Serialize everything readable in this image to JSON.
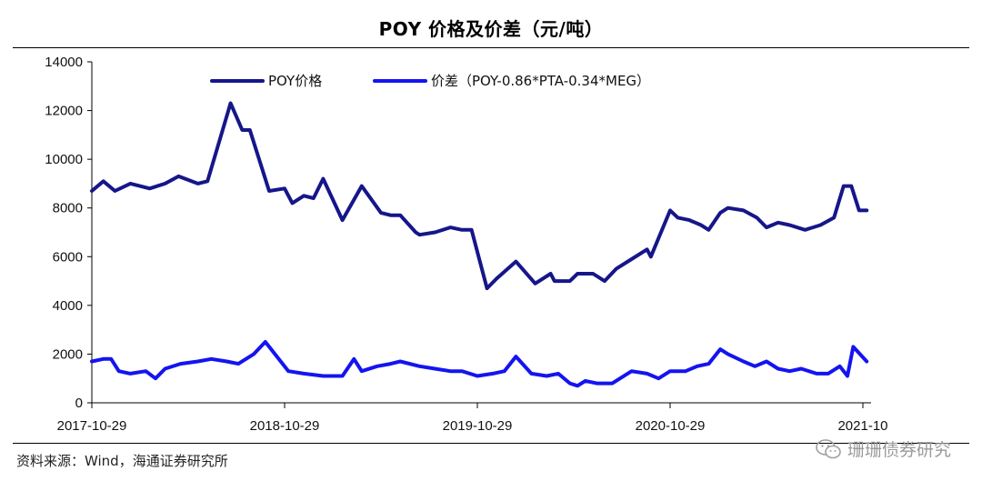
{
  "title": "POY 价格及价差（元/吨）",
  "source": "资料来源：Wind，海通证券研究所",
  "watermark": "珊珊债券研究",
  "colors": {
    "poy": "#16168a",
    "spread": "#1414f0",
    "axis": "#000000"
  },
  "chart_data": {
    "type": "line",
    "title": "POY 价格及价差（元/吨）",
    "xlabel": "",
    "ylabel": "",
    "ylim": [
      0,
      14000
    ],
    "yticks": [
      0,
      2000,
      4000,
      6000,
      8000,
      10000,
      12000,
      14000
    ],
    "xlim": [
      0,
      4.0
    ],
    "xticks": [
      {
        "value": 0,
        "label": "2017-10-29"
      },
      {
        "value": 1,
        "label": "2018-10-29"
      },
      {
        "value": 2,
        "label": "2019-10-29"
      },
      {
        "value": 3,
        "label": "2020-10-29"
      },
      {
        "value": 4,
        "label": "2021-10"
      }
    ],
    "legend": "top",
    "series": [
      {
        "name": "POY价格",
        "x": [
          0,
          0.06,
          0.12,
          0.2,
          0.3,
          0.38,
          0.45,
          0.55,
          0.6,
          0.72,
          0.78,
          0.82,
          0.92,
          1.0,
          1.04,
          1.1,
          1.15,
          1.2,
          1.3,
          1.4,
          1.5,
          1.55,
          1.6,
          1.68,
          1.7,
          1.78,
          1.86,
          1.92,
          1.97,
          2.05,
          2.1,
          2.2,
          2.3,
          2.38,
          2.4,
          2.48,
          2.52,
          2.6,
          2.66,
          2.72,
          2.8,
          2.88,
          2.9,
          3.0,
          3.04,
          3.1,
          3.16,
          3.2,
          3.26,
          3.3,
          3.38,
          3.45,
          3.5,
          3.56,
          3.62,
          3.7,
          3.78,
          3.85,
          3.9,
          3.94,
          3.98,
          4.02
        ],
        "values": [
          8700,
          9100,
          8700,
          9000,
          8800,
          9000,
          9300,
          9000,
          9100,
          12300,
          11200,
          11200,
          8700,
          8800,
          8200,
          8500,
          8400,
          9200,
          7500,
          8900,
          7800,
          7700,
          7700,
          7000,
          6900,
          7000,
          7200,
          7100,
          7100,
          4700,
          5100,
          5800,
          4900,
          5300,
          5000,
          5000,
          5300,
          5300,
          5000,
          5500,
          5900,
          6300,
          6000,
          7900,
          7600,
          7500,
          7300,
          7100,
          7800,
          8000,
          7900,
          7600,
          7200,
          7400,
          7300,
          7100,
          7300,
          7600,
          8900,
          8900,
          7900,
          7900
        ]
      },
      {
        "name": "价差（POY-0.86*PTA-0.34*MEG）",
        "x": [
          0,
          0.06,
          0.1,
          0.14,
          0.2,
          0.28,
          0.33,
          0.38,
          0.46,
          0.55,
          0.62,
          0.7,
          0.76,
          0.84,
          0.9,
          0.96,
          1.02,
          1.1,
          1.2,
          1.3,
          1.36,
          1.4,
          1.48,
          1.55,
          1.6,
          1.7,
          1.78,
          1.86,
          1.92,
          2.0,
          2.08,
          2.14,
          2.2,
          2.28,
          2.36,
          2.42,
          2.48,
          2.52,
          2.56,
          2.62,
          2.7,
          2.8,
          2.88,
          2.94,
          3.0,
          3.08,
          3.14,
          3.2,
          3.26,
          3.3,
          3.38,
          3.44,
          3.5,
          3.56,
          3.62,
          3.68,
          3.76,
          3.82,
          3.88,
          3.92,
          3.95,
          4.02
        ],
        "values": [
          1700,
          1800,
          1800,
          1300,
          1200,
          1300,
          1000,
          1400,
          1600,
          1700,
          1800,
          1700,
          1600,
          2000,
          2500,
          1900,
          1300,
          1200,
          1100,
          1100,
          1800,
          1300,
          1500,
          1600,
          1700,
          1500,
          1400,
          1300,
          1300,
          1100,
          1200,
          1300,
          1900,
          1200,
          1100,
          1200,
          800,
          700,
          900,
          800,
          800,
          1300,
          1200,
          1000,
          1300,
          1300,
          1500,
          1600,
          2200,
          2000,
          1700,
          1500,
          1700,
          1400,
          1300,
          1400,
          1200,
          1200,
          1500,
          1100,
          2300,
          1700
        ]
      }
    ]
  }
}
